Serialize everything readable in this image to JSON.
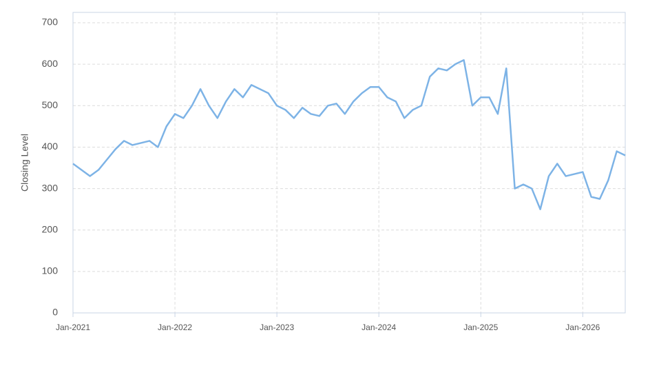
{
  "chart_data": {
    "type": "line",
    "y_label": "Closing Level",
    "x": [
      "Jan-2021",
      "Feb-2021",
      "Mar-2021",
      "Apr-2021",
      "May-2021",
      "Jun-2021",
      "Jul-2021",
      "Aug-2021",
      "Sep-2021",
      "Oct-2021",
      "Nov-2021",
      "Dec-2021",
      "Jan-2022",
      "Feb-2022",
      "Mar-2022",
      "Apr-2022",
      "May-2022",
      "Jun-2022",
      "Jul-2022",
      "Aug-2022",
      "Sep-2022",
      "Oct-2022",
      "Nov-2022",
      "Dec-2022",
      "Jan-2023",
      "Feb-2023",
      "Mar-2023",
      "Apr-2023",
      "May-2023",
      "Jun-2023",
      "Jul-2023",
      "Aug-2023",
      "Sep-2023",
      "Oct-2023",
      "Nov-2023",
      "Dec-2023",
      "Jan-2024",
      "Feb-2024",
      "Mar-2024",
      "Apr-2024",
      "May-2024",
      "Jun-2024",
      "Jul-2024",
      "Aug-2024",
      "Sep-2024",
      "Oct-2024",
      "Nov-2024",
      "Dec-2024",
      "Jan-2025",
      "Feb-2025",
      "Mar-2025",
      "Apr-2025",
      "May-2025",
      "Jun-2025",
      "Jul-2025",
      "Aug-2025",
      "Sep-2025",
      "Oct-2025",
      "Nov-2025",
      "Dec-2025",
      "Jan-2026",
      "Feb-2026",
      "Mar-2026",
      "Apr-2026",
      "May-2026",
      "Jun-2026"
    ],
    "series": [
      {
        "name": "Closing Level",
        "color": "#7db3e6",
        "values": [
          360,
          345,
          330,
          345,
          370,
          395,
          415,
          405,
          410,
          415,
          400,
          450,
          480,
          470,
          500,
          540,
          500,
          470,
          510,
          540,
          520,
          550,
          540,
          530,
          500,
          490,
          470,
          495,
          480,
          475,
          500,
          505,
          480,
          510,
          530,
          545,
          545,
          520,
          510,
          470,
          490,
          500,
          570,
          590,
          585,
          600,
          610,
          500,
          520,
          520,
          480,
          590,
          300,
          310,
          300,
          250,
          330,
          360,
          330,
          335,
          340,
          280,
          275,
          320,
          390,
          380
        ]
      }
    ],
    "xticks": [
      "Jan-2021",
      "Jan-2022",
      "Jan-2023",
      "Jan-2024",
      "Jan-2025",
      "Jan-2026"
    ],
    "ylim": [
      0,
      725
    ],
    "yticks": [
      0,
      100,
      200,
      300,
      400,
      500,
      600,
      700
    ],
    "grid": true
  }
}
